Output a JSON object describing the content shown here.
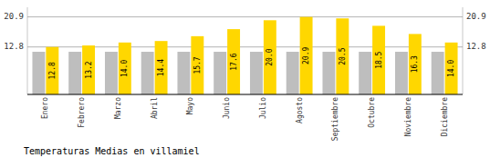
{
  "chart_data": {
    "type": "bar",
    "title": "Temperaturas Medias en villamiel",
    "categories": [
      "Enero",
      "Febrero",
      "Marzo",
      "Abril",
      "Mayo",
      "Junio",
      "Julio",
      "Agosto",
      "Septiembre",
      "Octubre",
      "Noviembre",
      "Diciembre"
    ],
    "series": [
      {
        "color": "#BEBEBE",
        "values": [
          11.5,
          11.5,
          11.5,
          11.5,
          11.5,
          11.5,
          11.5,
          11.5,
          11.5,
          11.5,
          11.5,
          11.5
        ]
      },
      {
        "color": "#FFD700",
        "values": [
          12.8,
          13.2,
          14.0,
          14.4,
          15.7,
          17.6,
          20.0,
          20.9,
          20.5,
          18.5,
          16.3,
          14.0
        ],
        "value_labels": [
          "12.8",
          "13.2",
          "14.0",
          "14.4",
          "15.7",
          "17.6",
          "20.0",
          "20.9",
          "20.5",
          "18.5",
          "16.3",
          "14.0"
        ],
        "data_labels": true
      }
    ],
    "ylim": [
      0,
      23.5
    ],
    "yticks": [
      12.8,
      20.9
    ],
    "y2lim": [
      0,
      23.5
    ],
    "y2ticks": [
      12.8,
      20.9
    ],
    "grid": true
  }
}
